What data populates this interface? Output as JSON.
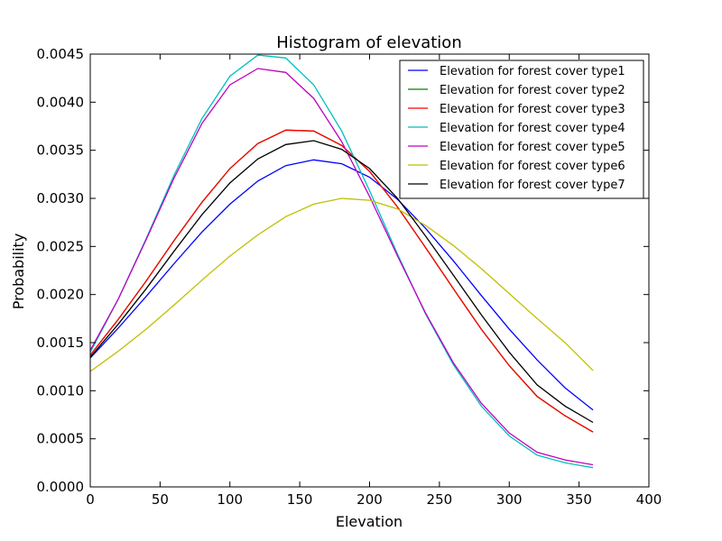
{
  "chart_data": {
    "type": "line",
    "title": "Histogram of elevation",
    "xlabel": "Elevation",
    "ylabel": "Probability",
    "xlim": [
      0,
      400
    ],
    "ylim": [
      0,
      0.0045
    ],
    "x_ticks": [
      "0",
      "50",
      "100",
      "150",
      "200",
      "250",
      "300",
      "350",
      "400"
    ],
    "y_ticks": [
      "0.0000",
      "0.0005",
      "0.0010",
      "0.0015",
      "0.0020",
      "0.0025",
      "0.0030",
      "0.0035",
      "0.0040",
      "0.0045"
    ],
    "grid": false,
    "legend_position": "top-right",
    "x": [
      0,
      20,
      40,
      60,
      80,
      100,
      120,
      140,
      160,
      180,
      200,
      220,
      240,
      260,
      280,
      300,
      320,
      340,
      360
    ],
    "series": [
      {
        "name": "Elevation for forest cover type1",
        "color": "#0000ff",
        "values": [
          0.00134,
          0.00165,
          0.00198,
          0.00232,
          0.00265,
          0.00294,
          0.00318,
          0.00334,
          0.0034,
          0.00336,
          0.00322,
          0.00299,
          0.00269,
          0.00235,
          0.00199,
          0.00164,
          0.00132,
          0.00103,
          0.0008
        ]
      },
      {
        "name": "Elevation for forest cover type2",
        "color": "#008000",
        "values": [
          0.00137,
          0.00174,
          0.00214,
          0.00256,
          0.00296,
          0.00331,
          0.00357,
          0.00371,
          0.0037,
          0.00355,
          0.00328,
          0.00291,
          0.00249,
          0.00206,
          0.00164,
          0.00126,
          0.00094,
          0.00074,
          0.00057
        ]
      },
      {
        "name": "Elevation for forest cover type3",
        "color": "#ff0000",
        "values": [
          0.00137,
          0.00174,
          0.00214,
          0.00256,
          0.00296,
          0.00331,
          0.00357,
          0.00371,
          0.0037,
          0.00355,
          0.00328,
          0.00291,
          0.00249,
          0.00206,
          0.00164,
          0.00126,
          0.00094,
          0.00074,
          0.00057
        ]
      },
      {
        "name": "Elevation for forest cover type4",
        "color": "#00bfbf",
        "values": [
          0.0014,
          0.00195,
          0.00258,
          0.00324,
          0.00383,
          0.00427,
          0.00449,
          0.00446,
          0.00418,
          0.0037,
          0.00308,
          0.00242,
          0.0018,
          0.00127,
          0.00084,
          0.00053,
          0.00033,
          0.00025,
          0.0002
        ]
      },
      {
        "name": "Elevation for forest cover type5",
        "color": "#bf00bf",
        "values": [
          0.00142,
          0.00195,
          0.00257,
          0.00321,
          0.00378,
          0.00418,
          0.00435,
          0.00431,
          0.00404,
          0.00359,
          0.00302,
          0.0024,
          0.00181,
          0.00129,
          0.00087,
          0.00056,
          0.00036,
          0.00028,
          0.00023
        ]
      },
      {
        "name": "Elevation for forest cover type6",
        "color": "#bfbf00",
        "values": [
          0.0012,
          0.00141,
          0.00164,
          0.00189,
          0.00215,
          0.0024,
          0.00262,
          0.00281,
          0.00294,
          0.003,
          0.00298,
          0.00289,
          0.00272,
          0.00251,
          0.00227,
          0.00201,
          0.00175,
          0.0015,
          0.00121
        ]
      },
      {
        "name": "Elevation for forest cover type7",
        "color": "#000000",
        "values": [
          0.00135,
          0.00169,
          0.00206,
          0.00245,
          0.00283,
          0.00316,
          0.00341,
          0.00356,
          0.0036,
          0.00351,
          0.00331,
          0.003,
          0.00261,
          0.0022,
          0.00179,
          0.0014,
          0.00106,
          0.00084,
          0.00067
        ]
      }
    ]
  }
}
